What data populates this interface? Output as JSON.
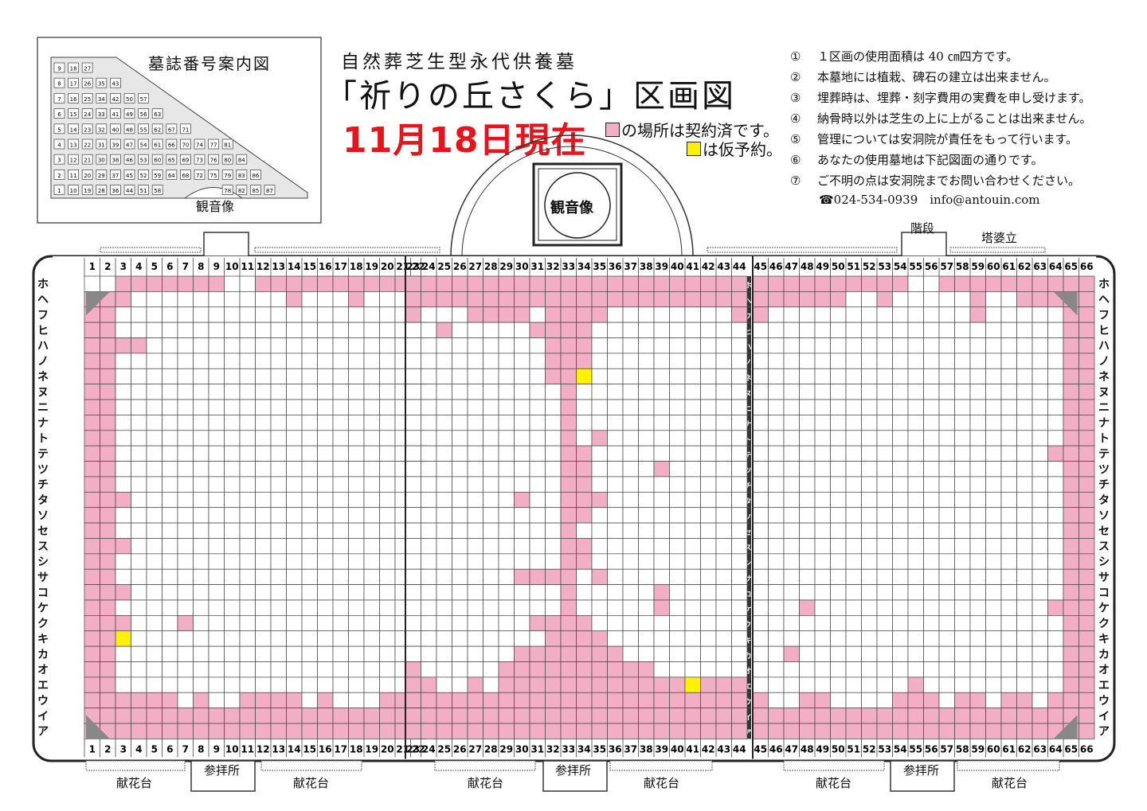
{
  "header": {
    "title_small": "自然葬芝生型永代供養墓",
    "title_big": "「祈りの丘さくら」区画図",
    "date": "11月18日現在",
    "legend_contracted": "の場所は契約済です。",
    "legend_provisional": "は仮予約。"
  },
  "guide_map": {
    "title": "墓誌番号案内図",
    "statue_label": "観音像",
    "rows": [
      [
        "9",
        "18",
        "27"
      ],
      [
        "8",
        "17",
        "26",
        "35",
        "43"
      ],
      [
        "7",
        "16",
        "25",
        "34",
        "42",
        "50",
        "57"
      ],
      [
        "6",
        "15",
        "24",
        "33",
        "41",
        "49",
        "56",
        "63"
      ],
      [
        "5",
        "14",
        "23",
        "32",
        "40",
        "48",
        "55",
        "62",
        "67",
        "71"
      ],
      [
        "4",
        "13",
        "22",
        "31",
        "39",
        "47",
        "54",
        "61",
        "66",
        "70",
        "74",
        "77",
        "81"
      ],
      [
        "3",
        "12",
        "21",
        "30",
        "38",
        "46",
        "53",
        "60",
        "65",
        "69",
        "73",
        "76",
        "80",
        "84"
      ],
      [
        "2",
        "11",
        "20",
        "29",
        "37",
        "45",
        "52",
        "59",
        "64",
        "68",
        "72",
        "75",
        "79",
        "83",
        "86"
      ],
      [
        "1",
        "10",
        "19",
        "28",
        "36",
        "44",
        "51",
        "58",
        "",
        "",
        "",
        "",
        "78",
        "82",
        "85",
        "87"
      ]
    ]
  },
  "notes": [
    {
      "num": "①",
      "text": "１区画の使用面積は 40 ㎝四方です。"
    },
    {
      "num": "②",
      "text": "本墓地には植栽、碑石の建立は出来ません。"
    },
    {
      "num": "③",
      "text": "埋葬時は、埋葬・刻字費用の実費を申し受けます。"
    },
    {
      "num": "④",
      "text": "納骨時以外は芝生の上に上がることは出来ません。"
    },
    {
      "num": "⑤",
      "text": "管理については安洞院が責任をもって行います。"
    },
    {
      "num": "⑥",
      "text": "あなたの使用墓地は下記図面の通りです。"
    },
    {
      "num": "⑦",
      "text": "ご不明の点は安洞院までお問い合わせください。"
    }
  ],
  "contact": "☎024-534-0939　info@antouin.com",
  "labels": {
    "statue": "観音像",
    "stairs": "階段",
    "stupa": "塔婆立",
    "worship": "参拝所",
    "flower_stand": "献花台"
  },
  "grid": {
    "columns": [
      "1",
      "2",
      "3",
      "4",
      "5",
      "6",
      "7",
      "8",
      "9",
      "10",
      "11",
      "12",
      "13",
      "14",
      "15",
      "16",
      "17",
      "18",
      "19",
      "20",
      "21",
      "22",
      "23",
      "24",
      "25",
      "26",
      "27",
      "28",
      "29",
      "30",
      "31",
      "32",
      "33",
      "34",
      "35",
      "36",
      "37",
      "38",
      "39",
      "40",
      "41",
      "42",
      "43",
      "44",
      "45",
      "46",
      "47",
      "48",
      "49",
      "50",
      "51",
      "52",
      "53",
      "54",
      "55",
      "56",
      "57",
      "58",
      "59",
      "60",
      "61",
      "62",
      "63",
      "64",
      "65",
      "66"
    ],
    "rows": [
      "ホ",
      "ヘ",
      "フ",
      "ヒ",
      "ハ",
      "ノ",
      "ネ",
      "ヌ",
      "ニ",
      "ナ",
      "ト",
      "テ",
      "ツ",
      "チ",
      "タ",
      "ソ",
      "セ",
      "ス",
      "シ",
      "サ",
      "コ",
      "ケ",
      "ク",
      "キ",
      "カ",
      "オ",
      "エ",
      "ウ",
      "イ",
      "ア"
    ],
    "colors": {
      "contracted": "#f2aec4",
      "provisional": "#fff100",
      "corner": "#888888",
      "line": "#333333"
    },
    "contracted": {
      "ホ": [
        "3-9",
        "12-22",
        "23-44",
        "45-54",
        "57-66"
      ],
      "ヘ": [
        "1-3",
        "14",
        "18",
        "23-44",
        "45-50",
        "53",
        "59",
        "62-66"
      ],
      "フ": [
        "1-2",
        "23",
        "27-30",
        "32-35",
        "44",
        "45",
        "59",
        "65-66"
      ],
      "ヒ": [
        "1-2",
        "25",
        "31-34",
        "65-66"
      ],
      "ハ": [
        "1-4",
        "32-34",
        "65-66"
      ],
      "ノ": [
        "1-2",
        "32-34",
        "65-66"
      ],
      "ネ": [
        "1-2",
        "32-33",
        "65-66"
      ],
      "ヌ": [
        "1-2",
        "33",
        "65-66"
      ],
      "ニ": [
        "1-2",
        "33",
        "65-66"
      ],
      "ナ": [
        "1-2",
        "33",
        "65-66"
      ],
      "ト": [
        "1-2",
        "33",
        "35",
        "65-66"
      ],
      "テ": [
        "1-2",
        "33-34",
        "64-66"
      ],
      "ツ": [
        "1-2",
        "33-34",
        "39",
        "65-66"
      ],
      "チ": [
        "1-2",
        "33-34",
        "65-66"
      ],
      "タ": [
        "1-3",
        "30",
        "33-35",
        "65-66"
      ],
      "ソ": [
        "1-2",
        "33-34",
        "65-66"
      ],
      "セ": [
        "1-2",
        "33",
        "65-66"
      ],
      "ス": [
        "1-3",
        "33-34",
        "65-66"
      ],
      "シ": [
        "1-2",
        "22",
        "33-34",
        "65-66"
      ],
      "サ": [
        "1-2",
        "30-33",
        "35",
        "65-66"
      ],
      "コ": [
        "1-3",
        "33",
        "39",
        "65-66"
      ],
      "ケ": [
        "1-2",
        "33",
        "39",
        "48",
        "64-66"
      ],
      "ク": [
        "1-3",
        "7",
        "31-34",
        "65-66"
      ],
      "キ": [
        "1-2",
        "32-35",
        "65-66"
      ],
      "カ": [
        "1-2",
        "30-36",
        "47",
        "65-66"
      ],
      "オ": [
        "1-2",
        "23",
        "29-38",
        "65-66"
      ],
      "エ": [
        "1-2",
        "23-24",
        "27",
        "29-40",
        "42-44",
        "55",
        "65-66"
      ],
      "ウ": [
        "1-6",
        "8",
        "11-14",
        "16",
        "20-22",
        "23-44",
        "45",
        "48-49",
        "54-56",
        "58-59",
        "61-62",
        "64-66"
      ],
      "イ": [
        "1-22",
        "23-44",
        "45-66"
      ],
      "ア": [
        "1-22",
        "23-44",
        "45-66"
      ]
    },
    "provisional": {
      "ネ": [
        "34"
      ],
      "キ": [
        "3"
      ],
      "エ": [
        "41"
      ]
    }
  }
}
